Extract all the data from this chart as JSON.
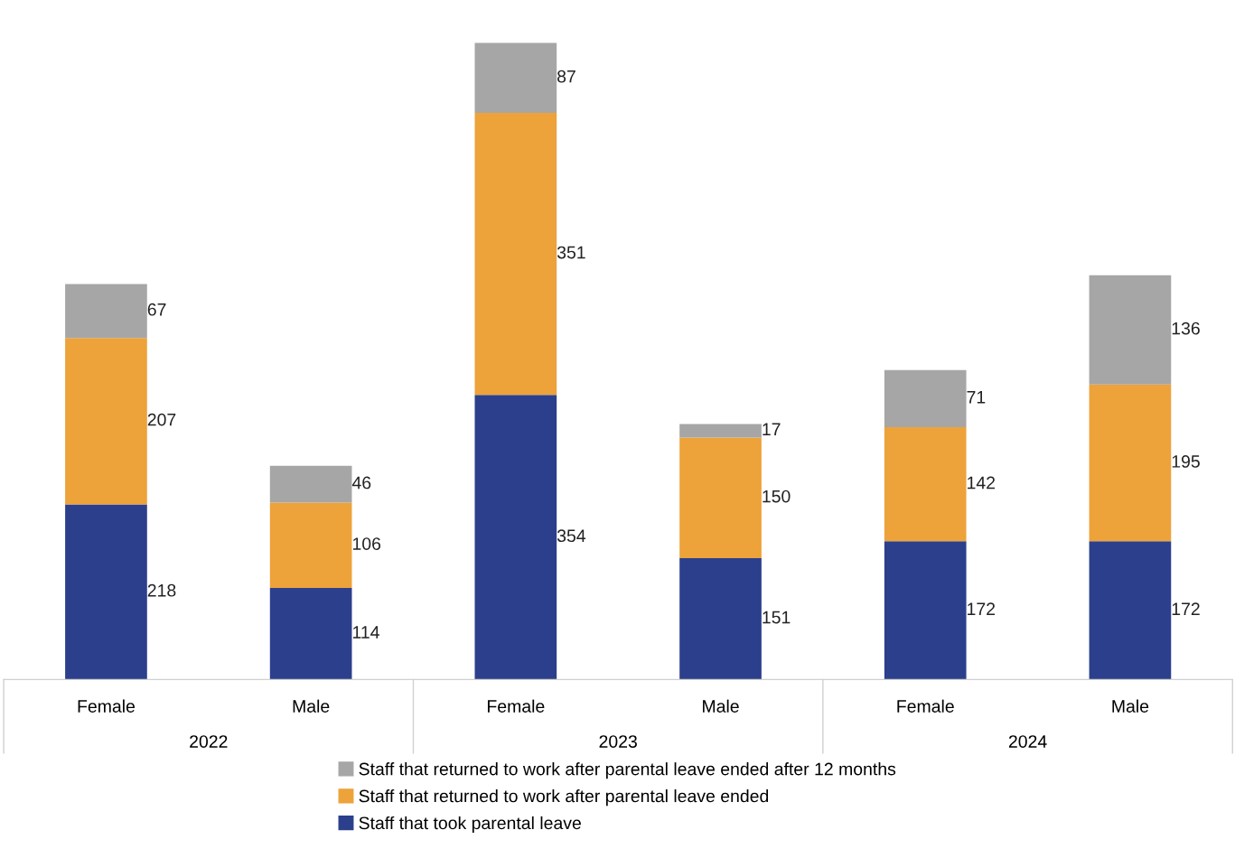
{
  "chart_data": {
    "type": "bar",
    "stacked": true,
    "data_labels": true,
    "legend": "bottom",
    "categories": [
      "Female",
      "Male",
      "Female",
      "Male",
      "Female",
      "Male"
    ],
    "series": [
      {
        "name": "Staff that took parental leave",
        "color": "#2b3f8c",
        "values": [
          218,
          114,
          354,
          151,
          172,
          172
        ]
      },
      {
        "name": "Staff that returned to work after parental leave ended",
        "color": "#eda23a",
        "values": [
          207,
          106,
          351,
          150,
          142,
          195
        ]
      },
      {
        "name": "Staff that returned to work after parental leave ended after 12 months",
        "color": "#a6a6a6",
        "values": [
          67,
          46,
          87,
          17,
          71,
          136
        ]
      }
    ],
    "annotations": [
      "2022",
      "2023",
      "2024"
    ]
  }
}
